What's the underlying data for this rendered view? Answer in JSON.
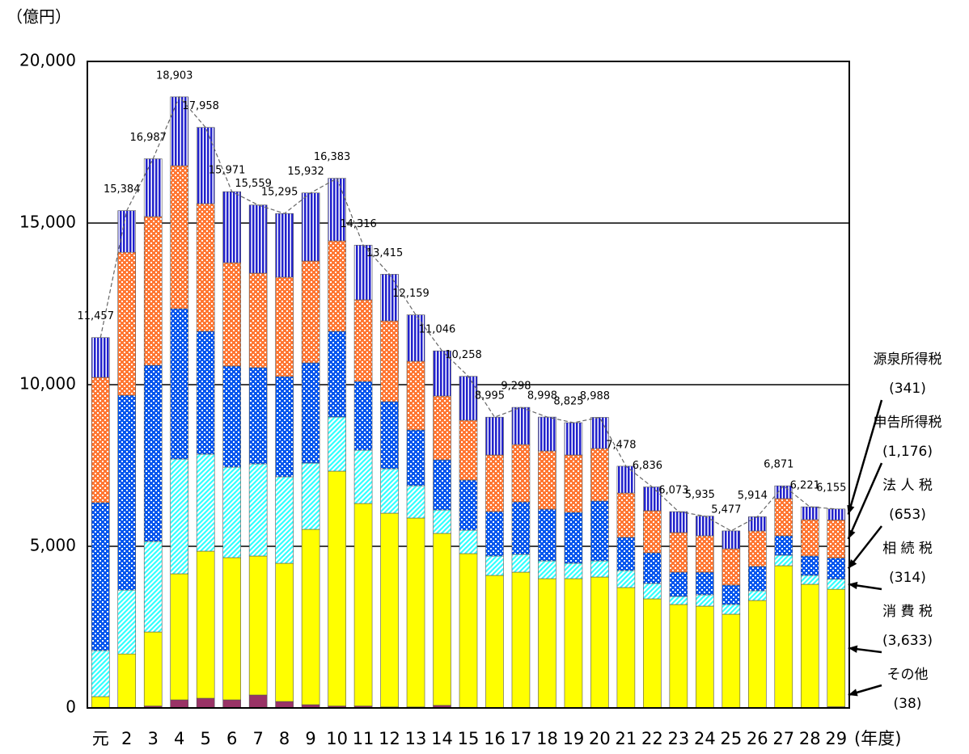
{
  "chart_data": {
    "type": "stacked-bar",
    "y_label": "（億円）",
    "x_label": "(年度)",
    "categories": [
      "元",
      "2",
      "3",
      "4",
      "5",
      "6",
      "7",
      "8",
      "9",
      "10",
      "11",
      "12",
      "13",
      "14",
      "15",
      "16",
      "17",
      "18",
      "19",
      "20",
      "21",
      "22",
      "23",
      "24",
      "25",
      "26",
      "27",
      "28",
      "29"
    ],
    "ylim": [
      0,
      20000
    ],
    "yticks": [
      0,
      {
        "value": 5000,
        "label": "5,000"
      },
      {
        "value": 10000,
        "label": "10,000"
      },
      {
        "value": 15000,
        "label": "15,000"
      },
      {
        "value": 20000,
        "label": "20,000"
      }
    ],
    "grid": true,
    "series": [
      {
        "name": "その他",
        "color": "#993366",
        "pattern": "solid",
        "legend_label": "(38)",
        "values": [
          20,
          20,
          60,
          250,
          300,
          250,
          400,
          200,
          100,
          60,
          60,
          30,
          30,
          80,
          20,
          15,
          15,
          15,
          15,
          15,
          10,
          10,
          10,
          10,
          10,
          10,
          15,
          15,
          38
        ]
      },
      {
        "name": "消 費 税",
        "color": "#ffff00",
        "pattern": "solid",
        "legend_label": "(3,633)",
        "values": [
          330,
          1650,
          2290,
          3900,
          4550,
          4400,
          4300,
          4275,
          5425,
          7265,
          6265,
          5995,
          5845,
          5320,
          4755,
          4085,
          4185,
          3985,
          3985,
          4035,
          3715,
          3365,
          3190,
          3140,
          2890,
          3315,
          4385,
          3810,
          3633
        ]
      },
      {
        "name": "相 続 税",
        "color": "#33ffff",
        "pattern": "hatch",
        "legend_label": "(314)",
        "values": [
          1425,
          1975,
          2800,
          3550,
          3000,
          2800,
          2850,
          2675,
          2050,
          1675,
          1650,
          1375,
          1000,
          725,
          725,
          600,
          550,
          550,
          475,
          500,
          525,
          475,
          250,
          350,
          300,
          300,
          325,
          275,
          314
        ]
      },
      {
        "name": "法 人 税",
        "color": "#0055ee",
        "pattern": "check",
        "legend_label": "(653)",
        "values": [
          4575,
          6025,
          5450,
          4650,
          3800,
          3125,
          2975,
          3100,
          3100,
          2650,
          2125,
          2075,
          1725,
          1550,
          1550,
          1375,
          1625,
          1600,
          1575,
          1850,
          1025,
          950,
          750,
          700,
          600,
          750,
          600,
          600,
          653
        ]
      },
      {
        "name": "申告所得税",
        "color": "#ff7733",
        "pattern": "check",
        "legend_label": "(1,176)",
        "values": [
          3875,
          4425,
          4600,
          4425,
          3950,
          3200,
          2925,
          3075,
          3150,
          2800,
          2525,
          2500,
          2125,
          1975,
          1850,
          1750,
          1775,
          1800,
          1775,
          1625,
          1375,
          1300,
          1225,
          1125,
          1125,
          1100,
          1150,
          1125,
          1176
        ]
      },
      {
        "name": "源泉所得税",
        "color": "#2222cc",
        "pattern": "vstripe",
        "legend_label": "(341)",
        "values": [
          1232,
          1289,
          1787,
          2128,
          2358,
          2196,
          2109,
          1970,
          2107,
          1933,
          1691,
          1440,
          1434,
          1396,
          1358,
          1170,
          1148,
          1048,
          1000,
          963,
          828,
          736,
          648,
          610,
          552,
          439,
          396,
          396,
          341
        ]
      }
    ],
    "totals": {
      "values": [
        11457,
        15384,
        16987,
        18903,
        17958,
        15971,
        15559,
        15295,
        15932,
        16383,
        14316,
        13415,
        12159,
        11046,
        10258,
        8995,
        9298,
        8998,
        8825,
        8988,
        7478,
        6836,
        6073,
        5935,
        5477,
        5914,
        6871,
        6221,
        6155
      ],
      "value_labels": [
        "11,457",
        "15,384",
        "16,987",
        "18,903",
        "17,958",
        "15,971",
        "15,559",
        "15,295",
        "15,932",
        "16,383",
        "14,316",
        "13,415",
        "12,159",
        "11,046",
        "10,258",
        "8,995",
        "9,298",
        "8,998",
        "8,825",
        "8,988",
        "7,478",
        "6,836",
        "6,073",
        "5,935",
        "5,477",
        "5,914",
        "6,871",
        "6,221",
        "6,155"
      ]
    }
  }
}
